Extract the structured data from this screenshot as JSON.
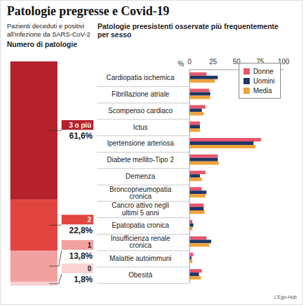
{
  "title": "Patologie pregresse e Covid-19",
  "source": "L'Ego-Hub",
  "chart_data": [
    {
      "type": "bar",
      "title": "Pazienti deceduti e positivi all'infezione da SARS-CoV-2",
      "subtitle": "Numero di patologie",
      "stacked": true,
      "data_labels": true,
      "tick_labels": false,
      "categories": [
        null
      ],
      "ylim": [
        0,
        100
      ],
      "series": [
        {
          "name": "3 o più",
          "color": "#b5222b",
          "values": [
            61.6
          ],
          "value_labels": [
            "61,6%"
          ]
        },
        {
          "name": "2",
          "color": "#e2453f",
          "values": [
            22.8
          ],
          "value_labels": [
            "22,8%"
          ]
        },
        {
          "name": "1",
          "color": "#f1a2a0",
          "values": [
            13.8
          ],
          "value_labels": [
            "13,8%"
          ]
        },
        {
          "name": "0",
          "color": "#f8d3d2",
          "values": [
            1.8
          ],
          "value_labels": [
            "1,8%"
          ]
        }
      ]
    },
    {
      "type": "bar",
      "title": "Patologie preesistenti osservate più frequentemente per sesso",
      "orientation": "horizontal",
      "grid": false,
      "legend": "top-right",
      "xlabel": "%",
      "xlim": [
        0,
        100
      ],
      "xticks": [
        0,
        25,
        50,
        75,
        100
      ],
      "categories": [
        "Cardiopatia ischemica",
        "Fibrillazione atriale",
        "Scompenso cardiaco",
        "Ictus",
        "Ipertensione arteriosa",
        "Diabete mellito-Tipo 2",
        "Demenza",
        "Broncopneumopatia cronica",
        "Cancro attivo negli ultimi 5 anni",
        "Epatopatia cronica",
        "Insufficienza renale cronica",
        "Malattie autoimmuni",
        "Obesità"
      ],
      "series": [
        {
          "name": "Donne",
          "color": "#e8566c",
          "values": [
            18,
            21,
            17,
            11,
            76,
            30,
            17,
            13,
            15,
            3,
            18,
            4,
            13
          ]
        },
        {
          "name": "Uomini",
          "color": "#1c3766",
          "values": [
            30,
            22,
            13,
            11,
            68,
            30,
            11,
            18,
            15,
            4,
            23,
            2,
            10
          ]
        },
        {
          "name": "Media",
          "color": "#f0a23a",
          "values": [
            27,
            22,
            15,
            11,
            70,
            31,
            13,
            17,
            16,
            3,
            21,
            3,
            12
          ]
        }
      ]
    }
  ]
}
